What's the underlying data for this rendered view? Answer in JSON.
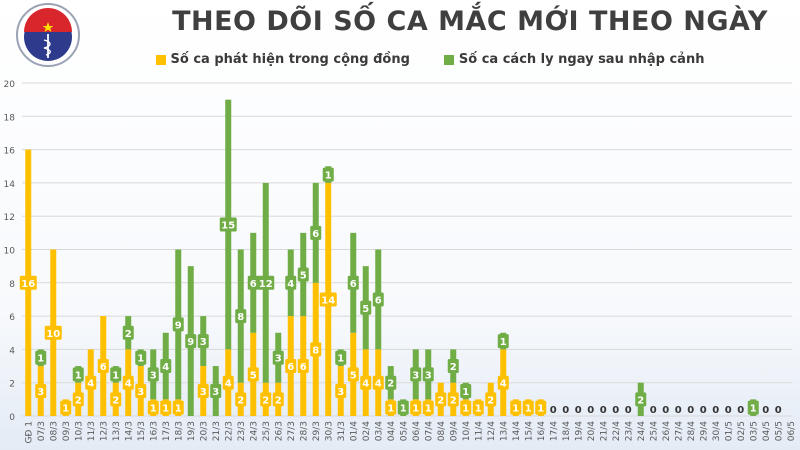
{
  "title": "THEO DÕI SỐ CA MẮC MỚI THEO NGÀY",
  "logo": {
    "text_top": "BỘ Y TẾ",
    "text_bottom": "MINISTRY OF HEALTH"
  },
  "colors": {
    "community": "#ffc000",
    "quarantine": "#70ad47",
    "grid": "#d9d9d9",
    "axis_text": "#595959"
  },
  "chart_data": {
    "type": "bar",
    "stacked": true,
    "title": "THEO DÕI SỐ CA MẮC MỚI THEO NGÀY",
    "xlabel": "",
    "ylabel": "",
    "ylim": [
      0,
      20
    ],
    "yticks": [
      0,
      2,
      4,
      6,
      8,
      10,
      12,
      14,
      16,
      18,
      20
    ],
    "grid": true,
    "legend_position": "top",
    "categories": [
      "GĐ 1",
      "07/3",
      "08/3",
      "09/3",
      "10/3",
      "11/3",
      "12/3",
      "13/3",
      "14/3",
      "15/3",
      "16/3",
      "17/3",
      "18/3",
      "19/3",
      "20/3",
      "21/3",
      "22/3",
      "23/3",
      "24/3",
      "25/3",
      "26/3",
      "27/3",
      "28/3",
      "29/3",
      "30/3",
      "31/3",
      "01/4",
      "02/4",
      "03/4",
      "04/4",
      "05/4",
      "06/4",
      "07/4",
      "08/4",
      "09/4",
      "10/4",
      "11/4",
      "12/4",
      "13/4",
      "14/4",
      "15/4",
      "16/4",
      "17/4",
      "18/4",
      "19/4",
      "20/4",
      "21/4",
      "22/4",
      "23/4",
      "24/4",
      "25/4",
      "26/4",
      "27/4",
      "28/4",
      "29/4",
      "30/4",
      "01/5",
      "02/5",
      "03/5",
      "04/5",
      "05/5",
      "06/5"
    ],
    "series": [
      {
        "name": "Số ca phát hiện trong cộng đồng",
        "color": "#ffc000",
        "values": [
          16,
          3,
          10,
          1,
          2,
          4,
          6,
          2,
          4,
          3,
          1,
          1,
          1,
          0,
          3,
          0,
          4,
          2,
          5,
          2,
          2,
          6,
          6,
          8,
          14,
          3,
          5,
          4,
          4,
          1,
          0,
          1,
          1,
          2,
          2,
          1,
          1,
          2,
          4,
          1,
          1,
          1,
          0,
          0,
          0,
          0,
          0,
          0,
          0,
          0,
          0,
          0,
          0,
          0,
          0,
          0,
          0,
          0,
          0,
          0,
          0,
          null
        ]
      },
      {
        "name": "Số ca cách ly ngay sau nhập cảnh",
        "color": "#70ad47",
        "values": [
          0,
          1,
          0,
          0,
          1,
          0,
          0,
          1,
          2,
          1,
          3,
          4,
          9,
          9,
          3,
          3,
          15,
          8,
          6,
          12,
          3,
          4,
          5,
          6,
          1,
          1,
          6,
          5,
          6,
          2,
          1,
          3,
          3,
          0,
          2,
          1,
          0,
          0,
          1,
          0,
          0,
          0,
          0,
          0,
          0,
          0,
          0,
          0,
          0,
          2,
          0,
          0,
          0,
          0,
          0,
          0,
          0,
          0,
          1,
          0,
          0,
          null
        ]
      }
    ]
  }
}
